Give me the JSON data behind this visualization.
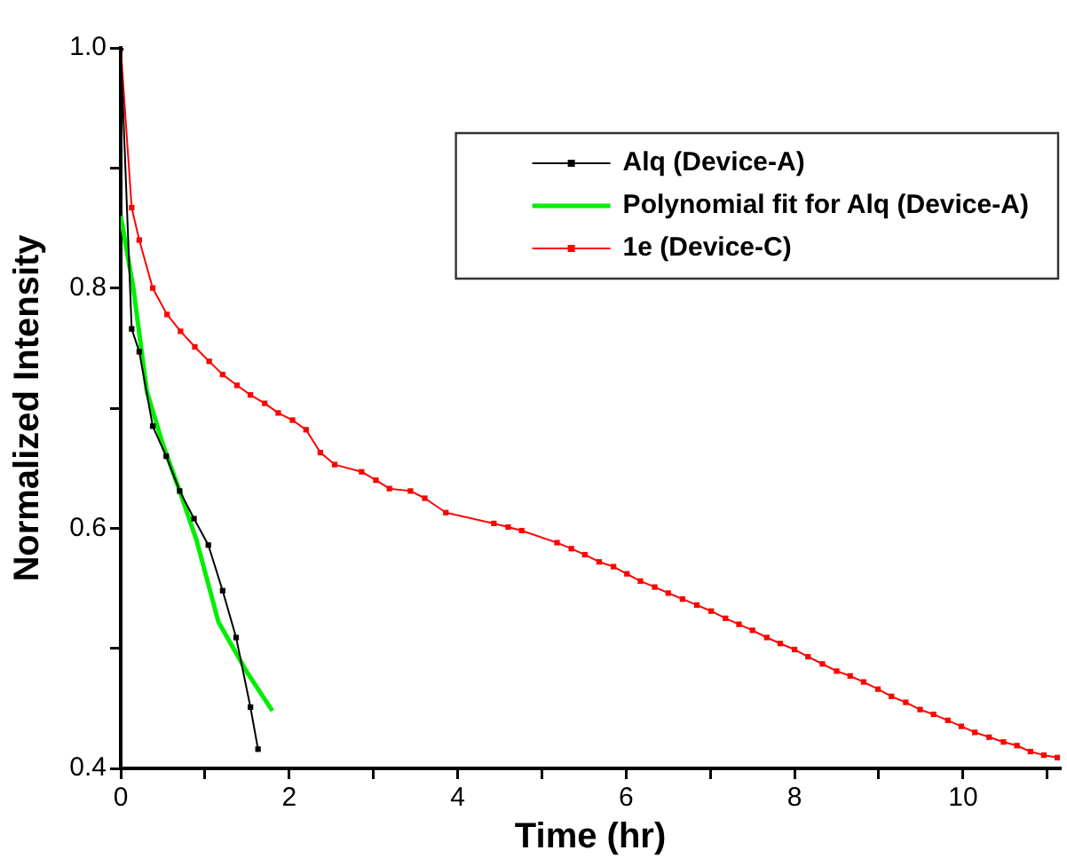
{
  "chart_data": {
    "type": "line",
    "xlabel": "Time (hr)",
    "ylabel": "Normalized Intensity",
    "xlim": [
      0,
      11.15
    ],
    "xticks": [
      0,
      {
        "value": 1,
        "label": null
      },
      2,
      {
        "value": 3,
        "label": null
      },
      4,
      {
        "value": 5,
        "label": null
      },
      6,
      {
        "value": 7,
        "label": null
      },
      8,
      {
        "value": 9,
        "label": null
      },
      10,
      {
        "value": 11,
        "label": null
      }
    ],
    "ylim": [
      0.4,
      1.0
    ],
    "yticks": [
      {
        "value": 0.4,
        "label": "0.4"
      },
      {
        "value": 0.5,
        "label": null
      },
      {
        "value": 0.6,
        "label": "0.6"
      },
      {
        "value": 0.7,
        "label": null
      },
      {
        "value": 0.8,
        "label": "0.8"
      },
      {
        "value": 0.9,
        "label": null
      },
      {
        "value": 1.0,
        "label": "1.0"
      }
    ],
    "legend": "top right",
    "grid": false,
    "marker": "square",
    "line_style": "solid",
    "series": [
      {
        "name": "Alq (Device-A)",
        "color": "#000000",
        "x": [
          0,
          0.13,
          0.22,
          0.38,
          0.54,
          0.7,
          0.87,
          1.04,
          1.21,
          1.37,
          1.54,
          1.63
        ],
        "values": [
          1.0,
          0.766,
          0.747,
          0.685,
          0.66,
          0.631,
          0.608,
          0.586,
          0.548,
          0.509,
          0.451,
          0.416
        ]
      },
      {
        "name": "Polynomial fit for Alq (Device-A)",
        "color": "#00ee00",
        "type": "line",
        "marker": "none",
        "x": [
          0,
          0.15,
          0.31,
          0.5,
          0.7,
          0.9,
          1.16,
          1.5,
          1.8
        ],
        "values": [
          0.86,
          0.8,
          0.714,
          0.67,
          0.631,
          0.59,
          0.522,
          0.48,
          0.448
        ]
      },
      {
        "name": "1e (Device-C)",
        "color": "#ff0000",
        "x": [
          0,
          0.13,
          0.22,
          0.38,
          0.55,
          0.71,
          0.88,
          1.05,
          1.21,
          1.38,
          1.54,
          1.71,
          1.87,
          2.04,
          2.2,
          2.37,
          2.54,
          2.86,
          3.03,
          3.19,
          3.44,
          3.61,
          3.86,
          4.43,
          4.6,
          4.76,
          5.18,
          5.35,
          5.51,
          5.68,
          5.85,
          6.01,
          6.17,
          6.34,
          6.5,
          6.67,
          6.84,
          7.01,
          7.18,
          7.34,
          7.5,
          7.67,
          7.83,
          8.0,
          8.16,
          8.33,
          8.5,
          8.66,
          8.82,
          8.99,
          9.15,
          9.32,
          9.49,
          9.65,
          9.82,
          9.98,
          10.14,
          10.31,
          10.48,
          10.64,
          10.8,
          10.96,
          11.12
        ],
        "values": [
          1.0,
          0.867,
          0.84,
          0.8,
          0.778,
          0.764,
          0.751,
          0.739,
          0.728,
          0.719,
          0.711,
          0.704,
          0.696,
          0.69,
          0.682,
          0.663,
          0.653,
          0.647,
          0.64,
          0.633,
          0.631,
          0.625,
          0.613,
          0.604,
          0.601,
          0.598,
          0.588,
          0.583,
          0.578,
          0.572,
          0.568,
          0.562,
          0.556,
          0.551,
          0.546,
          0.541,
          0.536,
          0.531,
          0.525,
          0.52,
          0.515,
          0.509,
          0.504,
          0.499,
          0.493,
          0.487,
          0.481,
          0.477,
          0.472,
          0.466,
          0.46,
          0.455,
          0.449,
          0.445,
          0.44,
          0.435,
          0.43,
          0.426,
          0.422,
          0.419,
          0.414,
          0.411,
          0.409
        ]
      }
    ]
  }
}
